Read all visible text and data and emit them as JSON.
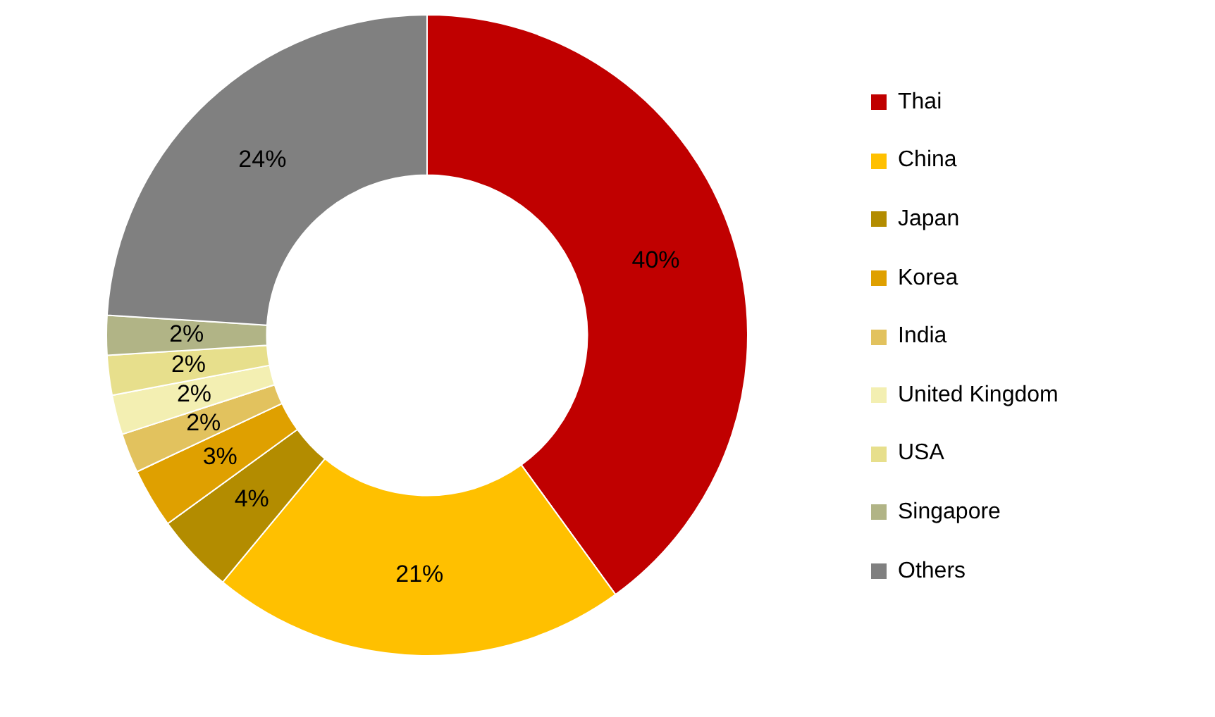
{
  "chart_data": {
    "type": "donut",
    "categories": [
      "Thai",
      "China",
      "Japan",
      "Korea",
      "India",
      "United Kingdom",
      "USA",
      "Singapore",
      "Others"
    ],
    "values": [
      40,
      21,
      4,
      3,
      2,
      2,
      2,
      2,
      24
    ],
    "colors": [
      "#c00000",
      "#ffc000",
      "#b38c00",
      "#dfa000",
      "#e2c25e",
      "#f3efb2",
      "#e7df8c",
      "#b1b486",
      "#808080"
    ],
    "value_labels": [
      "40%",
      "21%",
      "4%",
      "3%",
      "2%",
      "2%",
      "2%",
      "2%",
      "24%"
    ],
    "legend": "right"
  }
}
